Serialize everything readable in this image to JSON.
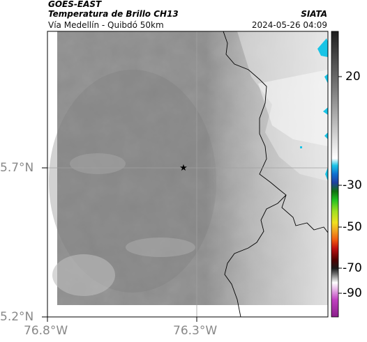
{
  "header": {
    "title": "GOES-EAST",
    "product": "Temperatura de Brillo CH13",
    "organization": "SIATA",
    "route": "Vía Medellín - Quibdó 50km",
    "timestamp": "2024-05-26 04:09"
  },
  "map": {
    "y_ticks": [
      "5.7°N",
      "5.2°N"
    ],
    "x_ticks": [
      "76.8°W",
      "76.3°W"
    ],
    "marker_icon": "star-icon",
    "grid": true
  },
  "colorbar": {
    "ticks": [
      "20",
      "-30",
      "-50",
      "-70",
      "-90"
    ],
    "colors": {
      "warm_gray": "#8c8c8c",
      "cyan": "#19c4e6",
      "blue": "#1f3fa0",
      "green": "#20c020",
      "yellow": "#f0e020",
      "red": "#e02010",
      "black": "#1a1a1a",
      "magenta": "#c040c0"
    }
  }
}
